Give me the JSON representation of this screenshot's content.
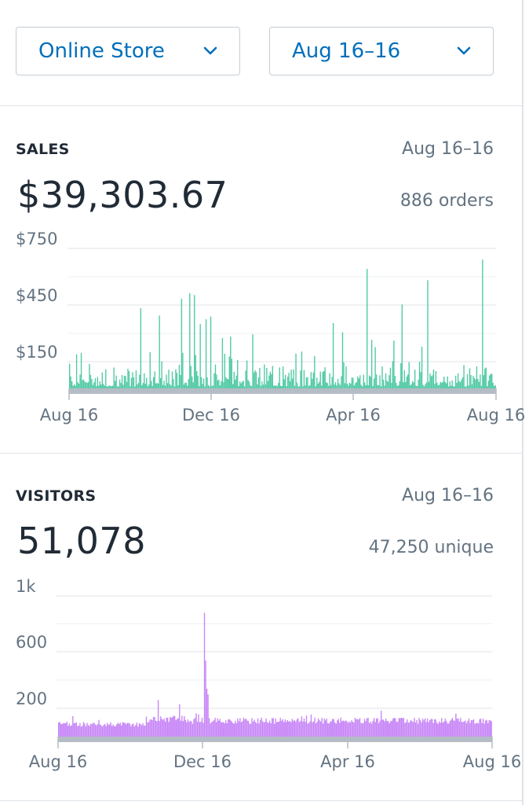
{
  "filters": {
    "channel": "Online Store",
    "date_range": "Aug 16–16"
  },
  "sales": {
    "title": "SALES",
    "range": "Aug 16–16",
    "total": "$39,303.67",
    "orders": "886 orders"
  },
  "visitors": {
    "title": "VISITORS",
    "range": "Aug 16–16",
    "total": "51,078",
    "unique": "47,250 unique"
  },
  "chart_data": [
    {
      "type": "bar",
      "name": "sales",
      "y_tick_labels": [
        "$750",
        "$450",
        "$150"
      ],
      "y_ticks": [
        750,
        450,
        150
      ],
      "ylim": [
        0,
        750
      ],
      "x_tick_labels": [
        "Aug 16",
        "Dec 16",
        "Apr 16",
        "Aug 16"
      ],
      "grid": true,
      "color": "#50c9a3",
      "baseline_value": 10,
      "spikes": [
        {
          "pos": 0.167,
          "value": 430
        },
        {
          "pos": 0.21,
          "value": 390
        },
        {
          "pos": 0.262,
          "value": 480
        },
        {
          "pos": 0.282,
          "value": 510
        },
        {
          "pos": 0.292,
          "value": 500
        },
        {
          "pos": 0.306,
          "value": 345
        },
        {
          "pos": 0.32,
          "value": 370
        },
        {
          "pos": 0.332,
          "value": 385
        },
        {
          "pos": 0.36,
          "value": 270
        },
        {
          "pos": 0.43,
          "value": 290
        },
        {
          "pos": 0.618,
          "value": 350
        },
        {
          "pos": 0.64,
          "value": 300
        },
        {
          "pos": 0.698,
          "value": 640
        },
        {
          "pos": 0.71,
          "value": 260
        },
        {
          "pos": 0.78,
          "value": 450
        },
        {
          "pos": 0.84,
          "value": 580
        },
        {
          "pos": 0.97,
          "value": 690
        }
      ]
    },
    {
      "type": "bar",
      "name": "visitors",
      "y_tick_labels": [
        "1k",
        "600",
        "200"
      ],
      "y_ticks": [
        1000,
        600,
        200
      ],
      "ylim": [
        0,
        1000
      ],
      "x_tick_labels": [
        "Aug 16",
        "Dec 16",
        "Apr 16",
        "Aug 16"
      ],
      "grid": true,
      "color": "#c887f7",
      "spikes": [
        {
          "pos": 0.336,
          "value": 880
        },
        {
          "pos": 0.339,
          "value": 540
        },
        {
          "pos": 0.342,
          "value": 340
        },
        {
          "pos": 0.346,
          "value": 300
        },
        {
          "pos": 0.23,
          "value": 260
        },
        {
          "pos": 0.28,
          "value": 230
        }
      ]
    }
  ]
}
